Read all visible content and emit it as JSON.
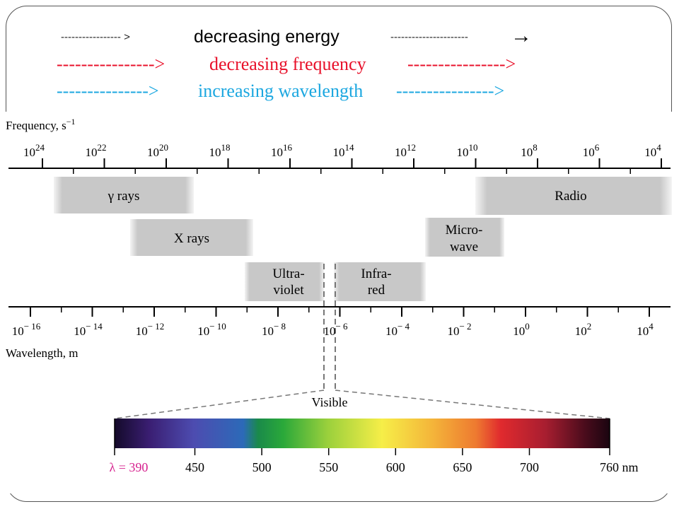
{
  "header": {
    "energy": {
      "left": "----------------- >",
      "label": "decreasing energy",
      "right": "----------------------"
    },
    "frequency": {
      "left": "---------------->",
      "label": "decreasing frequency",
      "right": "---------------->"
    },
    "wavelength": {
      "left": "--------------->",
      "label": "increasing wavelength",
      "right": "---------------->"
    }
  },
  "frequency_axis": {
    "label": "Frequency, s",
    "label_exp": "−1",
    "ticks": [
      {
        "base": "10",
        "exp": "24"
      },
      {
        "base": "10",
        "exp": "22"
      },
      {
        "base": "10",
        "exp": "20"
      },
      {
        "base": "10",
        "exp": "18"
      },
      {
        "base": "10",
        "exp": "16"
      },
      {
        "base": "10",
        "exp": "14"
      },
      {
        "base": "10",
        "exp": "12"
      },
      {
        "base": "10",
        "exp": "10"
      },
      {
        "base": "10",
        "exp": "8"
      },
      {
        "base": "10",
        "exp": "6"
      },
      {
        "base": "10",
        "exp": "4"
      }
    ]
  },
  "wavelength_axis": {
    "label": "Wavelength, m",
    "ticks": [
      {
        "base": "10",
        "exp": "− 16"
      },
      {
        "base": "10",
        "exp": "− 14"
      },
      {
        "base": "10",
        "exp": "− 12"
      },
      {
        "base": "10",
        "exp": "− 10"
      },
      {
        "base": "10",
        "exp": "− 8"
      },
      {
        "base": "10",
        "exp": "− 6"
      },
      {
        "base": "10",
        "exp": "− 4"
      },
      {
        "base": "10",
        "exp": "− 2"
      },
      {
        "base": "10",
        "exp": "0"
      },
      {
        "base": "10",
        "exp": "2"
      },
      {
        "base": "10",
        "exp": "4"
      }
    ]
  },
  "bands": {
    "gamma": "γ rays",
    "xray": "X rays",
    "uv": [
      "Ultra-",
      "violet"
    ],
    "ir": [
      "Infra-",
      "red"
    ],
    "microwave": [
      "Micro-",
      "wave"
    ],
    "radio": "Radio"
  },
  "visible": {
    "label": "Visible",
    "lambda": "λ = 390",
    "ticks": [
      "450",
      "500",
      "550",
      "600",
      "650",
      "700",
      "760 nm"
    ]
  }
}
